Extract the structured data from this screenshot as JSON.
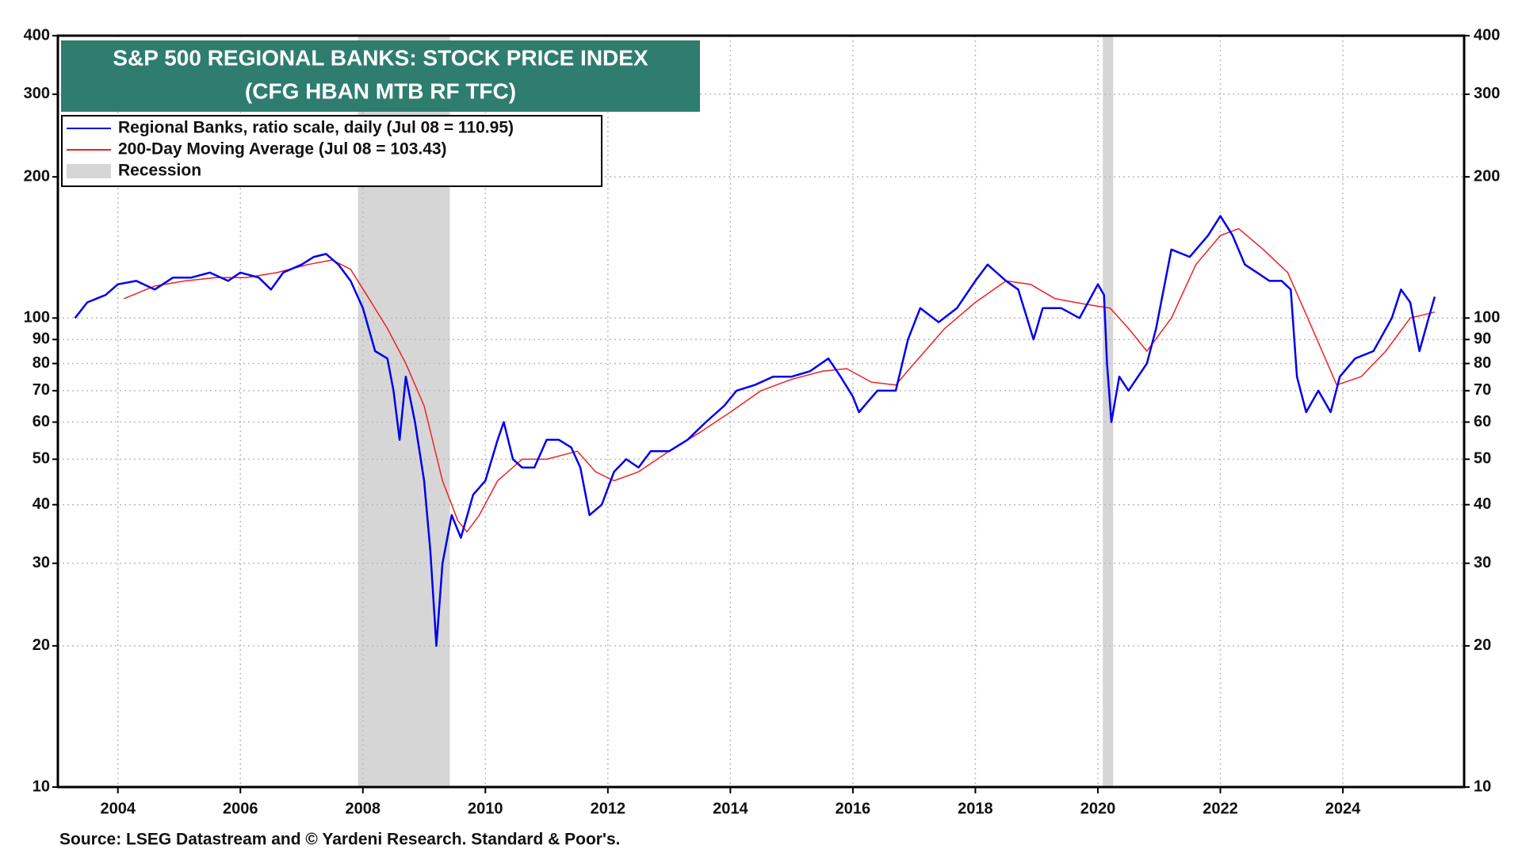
{
  "chart_data": {
    "type": "line",
    "title": "S&P 500 REGIONAL BANKS: STOCK PRICE INDEX",
    "subtitle": "(CFG HBAN MTB RF TFC)",
    "source": "Source: LSEG Datastream and © Yardeni Research. Standard & Poor's.",
    "log_scale": true,
    "grid": true,
    "legend_position": "upper-left",
    "recession_label": "Recession",
    "recession_color": "#d6d6d6",
    "recessions": [
      [
        2007.92,
        2009.42
      ],
      [
        2020.08,
        2020.25
      ]
    ],
    "xlim": [
      2003.02,
      2025.98
    ],
    "xticks": [
      2004,
      2006,
      2008,
      2010,
      2012,
      2014,
      2016,
      2018,
      2020,
      2022,
      2024
    ],
    "ylim": [
      10,
      400
    ],
    "yticks": [
      10,
      20,
      30,
      40,
      50,
      60,
      70,
      80,
      90,
      100,
      200,
      300,
      400
    ],
    "series": [
      {
        "name": "Regional Banks, ratio scale, daily (Jul 08 = 110.95)",
        "color": "#0000ee",
        "x": [
          2003.3,
          2003.5,
          2003.8,
          2004.0,
          2004.3,
          2004.6,
          2004.9,
          2005.2,
          2005.5,
          2005.8,
          2006.0,
          2006.3,
          2006.5,
          2006.7,
          2007.0,
          2007.2,
          2007.4,
          2007.6,
          2007.8,
          2008.0,
          2008.2,
          2008.4,
          2008.5,
          2008.6,
          2008.7,
          2008.85,
          2009.0,
          2009.1,
          2009.2,
          2009.3,
          2009.45,
          2009.6,
          2009.8,
          2010.0,
          2010.2,
          2010.3,
          2010.45,
          2010.6,
          2010.8,
          2011.0,
          2011.2,
          2011.4,
          2011.55,
          2011.7,
          2011.9,
          2012.1,
          2012.3,
          2012.5,
          2012.7,
          2013.0,
          2013.3,
          2013.6,
          2013.9,
          2014.1,
          2014.4,
          2014.7,
          2015.0,
          2015.3,
          2015.6,
          2015.8,
          2016.0,
          2016.1,
          2016.4,
          2016.7,
          2016.9,
          2017.1,
          2017.4,
          2017.7,
          2018.0,
          2018.2,
          2018.5,
          2018.7,
          2018.95,
          2019.1,
          2019.4,
          2019.7,
          2020.0,
          2020.1,
          2020.15,
          2020.22,
          2020.35,
          2020.5,
          2020.8,
          2020.95,
          2021.2,
          2021.5,
          2021.8,
          2022.0,
          2022.2,
          2022.4,
          2022.6,
          2022.8,
          2023.0,
          2023.15,
          2023.25,
          2023.4,
          2023.6,
          2023.8,
          2023.95,
          2024.2,
          2024.5,
          2024.8,
          2024.95,
          2025.1,
          2025.25,
          2025.4,
          2025.5
        ],
        "values": [
          100,
          108,
          112,
          118,
          120,
          115,
          122,
          122,
          125,
          120,
          125,
          122,
          115,
          125,
          130,
          135,
          137,
          130,
          120,
          105,
          85,
          82,
          70,
          55,
          75,
          60,
          45,
          32,
          20,
          30,
          38,
          34,
          42,
          45,
          55,
          60,
          50,
          48,
          48,
          55,
          55,
          53,
          48,
          38,
          40,
          47,
          50,
          48,
          52,
          52,
          55,
          60,
          65,
          70,
          72,
          75,
          75,
          77,
          82,
          75,
          68,
          63,
          70,
          70,
          90,
          105,
          98,
          105,
          120,
          130,
          120,
          115,
          90,
          105,
          105,
          100,
          118,
          112,
          80,
          60,
          75,
          70,
          80,
          95,
          140,
          135,
          150,
          165,
          150,
          130,
          125,
          120,
          120,
          115,
          75,
          63,
          70,
          63,
          75,
          82,
          85,
          100,
          115,
          108,
          85,
          100,
          111
        ]
      },
      {
        "name": "200-Day Moving Average (Jul 08 = 103.43)",
        "color": "#ee2222",
        "x": [
          2004.1,
          2004.6,
          2005.1,
          2005.6,
          2006.1,
          2006.6,
          2007.1,
          2007.5,
          2007.8,
          2008.1,
          2008.4,
          2008.7,
          2009.0,
          2009.3,
          2009.55,
          2009.7,
          2009.9,
          2010.2,
          2010.6,
          2011.0,
          2011.5,
          2011.8,
          2012.1,
          2012.5,
          2013.0,
          2013.5,
          2014.0,
          2014.5,
          2015.0,
          2015.5,
          2015.9,
          2016.3,
          2016.7,
          2017.0,
          2017.5,
          2018.0,
          2018.5,
          2018.9,
          2019.3,
          2019.8,
          2020.2,
          2020.5,
          2020.8,
          2021.2,
          2021.6,
          2022.0,
          2022.3,
          2022.7,
          2023.1,
          2023.5,
          2023.9,
          2024.3,
          2024.7,
          2025.1,
          2025.5
        ],
        "values": [
          110,
          117,
          120,
          122,
          122,
          125,
          130,
          133,
          127,
          110,
          95,
          80,
          65,
          45,
          37,
          35,
          38,
          45,
          50,
          50,
          52,
          47,
          45,
          47,
          52,
          57,
          63,
          70,
          74,
          77,
          78,
          73,
          72,
          80,
          95,
          108,
          120,
          118,
          110,
          107,
          105,
          95,
          85,
          100,
          130,
          150,
          155,
          140,
          125,
          95,
          72,
          75,
          85,
          100,
          103
        ]
      }
    ]
  }
}
